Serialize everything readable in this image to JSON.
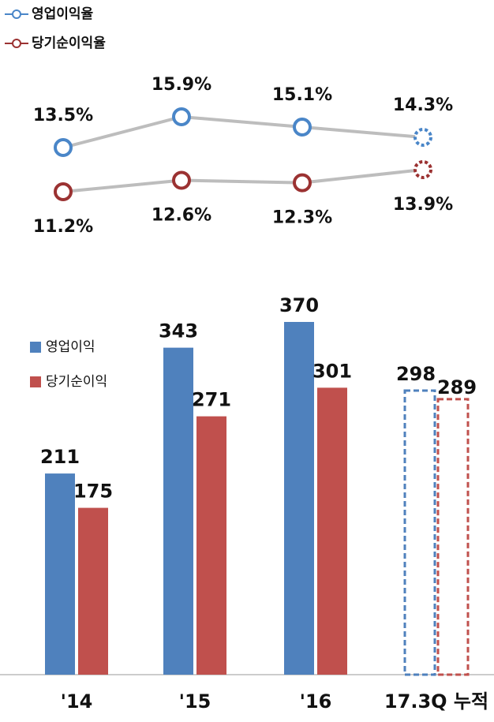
{
  "chart_data": [
    {
      "type": "line",
      "series": [
        {
          "name": "영업이익율",
          "color": "#4a86c8",
          "values": [
            13.5,
            15.9,
            15.1,
            14.3
          ],
          "value_labels": [
            "13.5%",
            "15.9%",
            "15.1%",
            "14.3%"
          ]
        },
        {
          "name": "당기순이익율",
          "color": "#9b3232",
          "values": [
            11.2,
            12.6,
            12.3,
            13.9
          ],
          "value_labels": [
            "11.2%",
            "12.6%",
            "12.3%",
            "13.9%"
          ]
        }
      ],
      "dashed": [
        false,
        false,
        false,
        true
      ]
    },
    {
      "type": "bar",
      "categories": [
        "'14",
        "'15",
        "'16",
        "17.3Q 누적"
      ],
      "series": [
        {
          "name": "영업이익",
          "color": "#4f81bd",
          "values": [
            211,
            343,
            370,
            298
          ]
        },
        {
          "name": "당기순이익",
          "color": "#c0504d",
          "values": [
            175,
            271,
            301,
            289
          ]
        }
      ],
      "dashed": [
        false,
        false,
        false,
        true
      ]
    }
  ]
}
